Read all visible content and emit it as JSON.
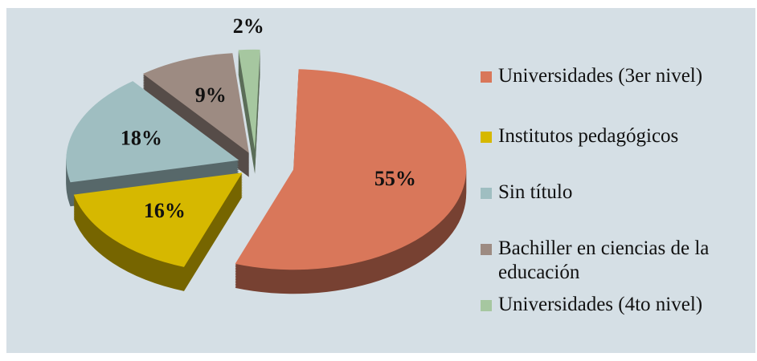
{
  "chart_data": {
    "type": "pie",
    "categories": [
      "Universidades (3er nivel)",
      "Institutos pedagógicos",
      "Sin título",
      "Bachiller en ciencias de la educación",
      "Universidades (4to nivel)"
    ],
    "values": [
      55,
      16,
      18,
      9,
      2
    ],
    "value_labels": [
      "55%",
      "16%",
      "18%",
      "9%",
      "2%"
    ],
    "colors": [
      "#d9775a",
      "#d6b800",
      "#9fbec1",
      "#9d8b82",
      "#a6c7a0"
    ],
    "legend": "right"
  }
}
